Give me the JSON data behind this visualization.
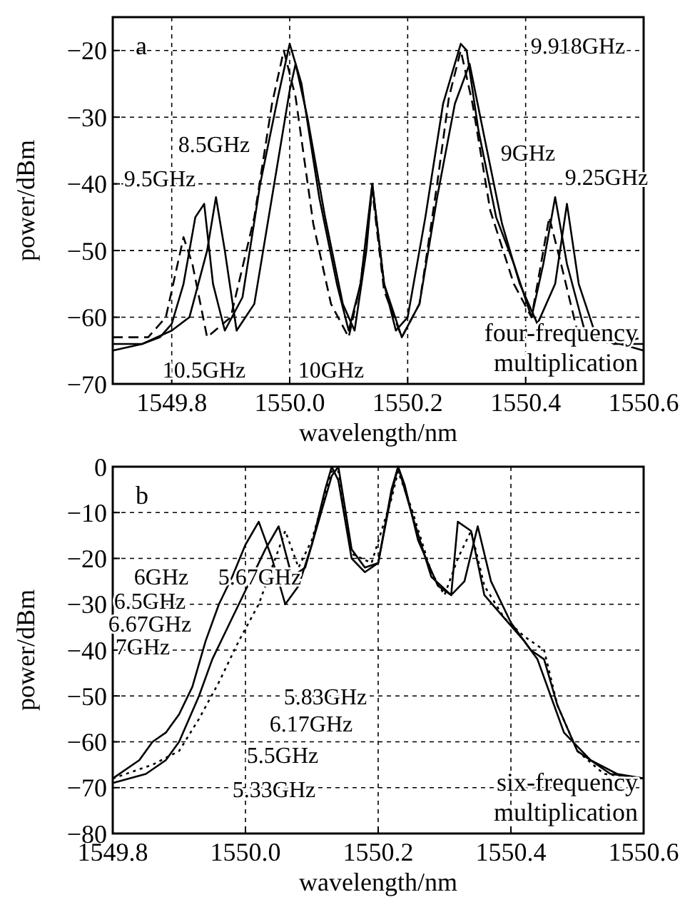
{
  "chart_data": [
    {
      "type": "line",
      "xlabel": "wavelength/nm",
      "ylabel": "power/dBm",
      "xlim": [
        1549.7,
        1550.6
      ],
      "xticks": [
        1549.8,
        {
          "value": 1550.0,
          "label": "1550.0"
        },
        1550.2,
        1550.4,
        1550.6
      ],
      "ylim": [
        -70,
        -15
      ],
      "yticks": [
        -70,
        -60,
        -50,
        -40,
        -30,
        -20
      ],
      "grid": true,
      "annotations": [
        "a",
        "four-frequency multiplication",
        "9.918GHz",
        "8.5GHz",
        "9.5GHz",
        "9GHz",
        "9.25GHz",
        "10.5GHz",
        "10GHz"
      ],
      "series": [
        {
          "color": "#000000",
          "line_style": "solid",
          "x": [
            1549.7,
            1549.75,
            1549.78,
            1549.8,
            1549.82,
            1549.84,
            1549.855,
            1549.87,
            1549.89,
            1549.92,
            1549.95,
            1549.98,
            1550.0,
            1550.02,
            1550.05,
            1550.08,
            1550.1,
            1550.12,
            1550.14,
            1550.16,
            1550.18,
            1550.2,
            1550.23,
            1550.26,
            1550.29,
            1550.3,
            1550.32,
            1550.35,
            1550.38,
            1550.41,
            1550.43,
            1550.45,
            1550.47,
            1550.5,
            1550.55,
            1550.6
          ],
          "values": [
            -64,
            -64,
            -63,
            -61,
            -55,
            -45,
            -43,
            -55,
            -62,
            -57,
            -40,
            -27,
            -19,
            -25,
            -42,
            -55,
            -62,
            -55,
            -40,
            -55,
            -62,
            -60,
            -45,
            -28,
            -19,
            -20,
            -32,
            -45,
            -52,
            -60,
            -52,
            -42,
            -52,
            -62,
            -64,
            -64
          ]
        },
        {
          "color": "#000000",
          "line_style": "solid",
          "x": [
            1549.7,
            1549.75,
            1549.8,
            1549.83,
            1549.86,
            1549.875,
            1549.89,
            1549.91,
            1549.94,
            1549.97,
            1550.0,
            1550.01,
            1550.03,
            1550.06,
            1550.09,
            1550.11,
            1550.13,
            1550.14,
            1550.16,
            1550.19,
            1550.22,
            1550.25,
            1550.28,
            1550.305,
            1550.33,
            1550.36,
            1550.39,
            1550.42,
            1550.45,
            1550.47,
            1550.49,
            1550.52,
            1550.6
          ],
          "values": [
            -65,
            -64,
            -62,
            -60,
            -50,
            -42,
            -50,
            -62,
            -58,
            -42,
            -26,
            -22,
            -30,
            -45,
            -58,
            -62,
            -50,
            -40,
            -55,
            -63,
            -58,
            -42,
            -28,
            -22,
            -33,
            -46,
            -55,
            -61,
            -55,
            -43,
            -55,
            -63,
            -65
          ]
        },
        {
          "color": "#000000",
          "line_style": "dashed",
          "x": [
            1549.7,
            1549.76,
            1549.79,
            1549.81,
            1549.82,
            1549.835,
            1549.86,
            1549.9,
            1549.94,
            1549.97,
            1549.99,
            1550.01,
            1550.04,
            1550.07,
            1550.1,
            1550.12,
            1550.14,
            1550.16,
            1550.19,
            1550.22,
            1550.25,
            1550.27,
            1550.29,
            1550.31,
            1550.34,
            1550.38,
            1550.41,
            1550.43,
            1550.44,
            1550.46,
            1550.49,
            1550.55,
            1550.6
          ],
          "values": [
            -63,
            -63,
            -60,
            -52,
            -48,
            -52,
            -63,
            -60,
            -45,
            -28,
            -20,
            -27,
            -46,
            -58,
            -63,
            -55,
            -41,
            -56,
            -63,
            -58,
            -40,
            -27,
            -20,
            -28,
            -44,
            -55,
            -60,
            -50,
            -45,
            -52,
            -63,
            -64,
            -63
          ]
        }
      ]
    },
    {
      "type": "line",
      "xlabel": "wavelength/nm",
      "ylabel": "power/dBm",
      "xlim": [
        1549.8,
        1550.6
      ],
      "xticks": [
        1549.8,
        {
          "value": 1550.0,
          "label": "1550.0"
        },
        1550.2,
        1550.4,
        1550.6
      ],
      "ylim": [
        -80,
        0
      ],
      "yticks": [
        -80,
        -70,
        -60,
        -50,
        -40,
        -30,
        -20,
        -10,
        0
      ],
      "grid": true,
      "annotations": [
        "b",
        "six-frequency multiplication",
        "6GHz",
        "5.67GHz",
        "6.5GHz",
        "6.67GHz",
        "7GHz",
        "5.83GHz",
        "6.17GHz",
        "5.5GHz",
        "5.33GHz"
      ],
      "series": [
        {
          "color": "#000000",
          "line_style": "solid",
          "x": [
            1549.8,
            1549.84,
            1549.86,
            1549.88,
            1549.9,
            1549.92,
            1549.94,
            1549.96,
            1549.98,
            1550.0,
            1550.02,
            1550.04,
            1550.06,
            1550.08,
            1550.1,
            1550.12,
            1550.13,
            1550.14,
            1550.16,
            1550.18,
            1550.2,
            1550.22,
            1550.23,
            1550.24,
            1550.26,
            1550.29,
            1550.31,
            1550.32,
            1550.34,
            1550.36,
            1550.39,
            1550.42,
            1550.44,
            1550.46,
            1550.48,
            1550.52,
            1550.56,
            1550.6
          ],
          "values": [
            -68,
            -64,
            -60,
            -58,
            -54,
            -48,
            -38,
            -30,
            -24,
            -17,
            -12,
            -20,
            -30,
            -26,
            -17,
            -5,
            0,
            -3,
            -20,
            -23,
            -21,
            -6,
            0,
            -4,
            -16,
            -26,
            -28,
            -12,
            -14,
            -28,
            -33,
            -38,
            -42,
            -50,
            -58,
            -64,
            -67,
            -68
          ]
        },
        {
          "color": "#000000",
          "line_style": "solid",
          "x": [
            1549.8,
            1549.85,
            1549.88,
            1549.9,
            1549.93,
            1549.95,
            1549.97,
            1549.99,
            1550.01,
            1550.03,
            1550.05,
            1550.07,
            1550.09,
            1550.11,
            1550.13,
            1550.14,
            1550.16,
            1550.18,
            1550.2,
            1550.22,
            1550.23,
            1550.25,
            1550.28,
            1550.31,
            1550.33,
            1550.35,
            1550.37,
            1550.4,
            1550.43,
            1550.45,
            1550.47,
            1550.5,
            1550.55,
            1550.6
          ],
          "values": [
            -69,
            -67,
            -64,
            -60,
            -50,
            -42,
            -36,
            -30,
            -24,
            -18,
            -13,
            -24,
            -22,
            -12,
            -2,
            0,
            -18,
            -22,
            -21,
            -5,
            0,
            -10,
            -24,
            -28,
            -25,
            -13,
            -25,
            -34,
            -40,
            -42,
            -52,
            -62,
            -67,
            -68
          ]
        },
        {
          "color": "#000000",
          "line_style": "dotted",
          "x": [
            1549.8,
            1549.86,
            1549.9,
            1549.93,
            1549.96,
            1549.99,
            1550.02,
            1550.04,
            1550.06,
            1550.08,
            1550.1,
            1550.12,
            1550.13,
            1550.14,
            1550.16,
            1550.19,
            1550.22,
            1550.23,
            1550.25,
            1550.28,
            1550.3,
            1550.32,
            1550.34,
            1550.36,
            1550.39,
            1550.42,
            1550.45,
            1550.47,
            1550.5,
            1550.54,
            1550.6
          ],
          "values": [
            -68,
            -65,
            -62,
            -55,
            -47,
            -38,
            -30,
            -22,
            -14,
            -22,
            -16,
            -6,
            -1,
            -1,
            -19,
            -21,
            -7,
            -1,
            -9,
            -23,
            -28,
            -20,
            -14,
            -26,
            -33,
            -37,
            -40,
            -52,
            -62,
            -67,
            -68
          ]
        }
      ]
    }
  ]
}
